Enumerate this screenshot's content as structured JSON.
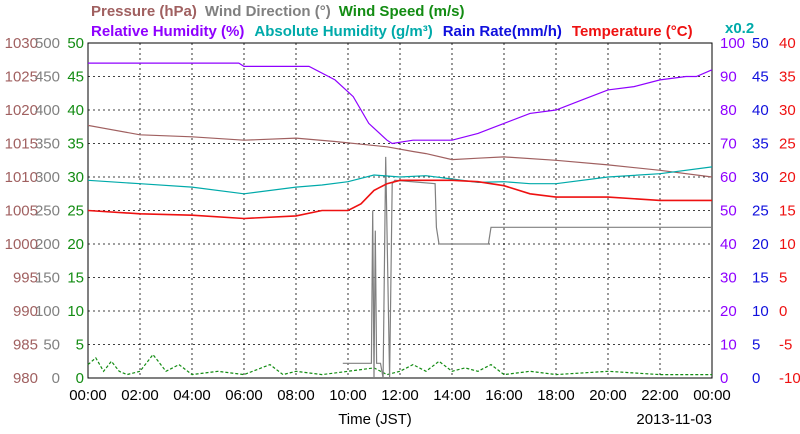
{
  "chart_data": {
    "type": "line",
    "date_label": "2013-11-03",
    "xlabel": "Time (JST)",
    "x_ticks": [
      "00:00",
      "02:00",
      "04:00",
      "06:00",
      "08:00",
      "10:00",
      "12:00",
      "14:00",
      "16:00",
      "18:00",
      "20:00",
      "22:00",
      "00:00"
    ],
    "legend": {
      "row1": [
        {
          "key": "pressure",
          "text": "Pressure (hPa)",
          "color": "#a06060"
        },
        {
          "key": "wind_direction",
          "text": "Wind Direction (°)",
          "color": "#808080"
        },
        {
          "key": "wind_speed",
          "text": "Wind Speed (m/s)",
          "color": "#138c13"
        }
      ],
      "row2": [
        {
          "key": "humidity",
          "text": "Relative Humidity (%)",
          "color": "#8f00ff"
        },
        {
          "key": "abs_humidity",
          "text": "Absolute Humidity (g/m³)",
          "color": "#00aaaa"
        },
        {
          "key": "rain_rate",
          "text": "Rain Rate(mm/h)",
          "color": "#1010dd"
        },
        {
          "key": "temperature",
          "text": "Temperature (°C)",
          "color": "#ee1111"
        }
      ],
      "abs_scale_note": "x0.2"
    },
    "axes": {
      "pressure": {
        "color": "#a06060",
        "ticks": [
          "1030",
          "1025",
          "1020",
          "1015",
          "1010",
          "1005",
          "1000",
          "995",
          "990",
          "985",
          "980"
        ]
      },
      "wind_direction": {
        "color": "#808080",
        "ticks": [
          "500",
          "450",
          "400",
          "350",
          "300",
          "250",
          "200",
          "150",
          "100",
          "50",
          "0"
        ]
      },
      "wind_speed": {
        "color": "#138c13",
        "ticks": [
          "50",
          "45",
          "40",
          "35",
          "30",
          "25",
          "20",
          "15",
          "10",
          "5",
          "0"
        ]
      },
      "humidity": {
        "color": "#8f00ff",
        "ticks": [
          "100",
          "90",
          "80",
          "70",
          "60",
          "50",
          "40",
          "30",
          "20",
          "10",
          "0"
        ]
      },
      "rain_rate": {
        "color": "#1010dd",
        "ticks": [
          "50",
          "45",
          "40",
          "35",
          "30",
          "25",
          "20",
          "15",
          "10",
          "5",
          "0"
        ]
      },
      "temperature": {
        "color": "#ee1111",
        "ticks": [
          "40",
          "35",
          "30",
          "25",
          "20",
          "15",
          "10",
          "5",
          "0",
          "-5",
          "-10"
        ]
      }
    },
    "series": [
      {
        "key": "humidity",
        "name": "Relative Humidity (%)",
        "color": "#8f00ff",
        "axis_range": [
          0,
          100
        ],
        "x": [
          0,
          5.8,
          6,
          8.5,
          9.5,
          10.2,
          10.8,
          11.5,
          11.7,
          12.5,
          13.5,
          14,
          15,
          16,
          17,
          18,
          19,
          20,
          21,
          22,
          23,
          23.4,
          24
        ],
        "y": [
          94,
          94,
          93,
          93,
          89,
          84,
          76,
          71,
          70,
          71,
          71,
          71,
          73,
          76,
          79,
          80,
          83,
          86,
          87,
          89,
          90,
          90,
          92
        ]
      },
      {
        "key": "pressure",
        "name": "Pressure (hPa)",
        "color": "#a06060",
        "axis_range": [
          980,
          1030
        ],
        "x": [
          0,
          2,
          4,
          6,
          8,
          9.5,
          10.5,
          11.5,
          12.5,
          13,
          14,
          15,
          16,
          18,
          20,
          22,
          24
        ],
        "y": [
          1017.7,
          1016.3,
          1016,
          1015.5,
          1015.8,
          1015.3,
          1014.9,
          1014.5,
          1013.8,
          1013.5,
          1012.6,
          1012.8,
          1013,
          1012.5,
          1011.8,
          1011,
          1010
        ]
      },
      {
        "key": "abs_humidity",
        "name": "Absolute Humidity (g/m³)",
        "color": "#00aaaa",
        "axis_range": [
          0,
          50
        ],
        "x": [
          0,
          2,
          4,
          6,
          8,
          9,
          10,
          11,
          12,
          13,
          14,
          15,
          16,
          17,
          18,
          20,
          22,
          24
        ],
        "y": [
          29.5,
          29,
          28.5,
          27.5,
          28.5,
          28.8,
          29.3,
          30.3,
          30,
          30.2,
          29.7,
          29.2,
          29.3,
          29,
          29,
          30,
          30.5,
          31.5
        ]
      },
      {
        "key": "temperature",
        "name": "Temperature (°C)",
        "color": "#ee1111",
        "axis_range": [
          -10,
          40
        ],
        "x": [
          0,
          2,
          4,
          6,
          8,
          9,
          10,
          10.5,
          11,
          11.5,
          12,
          13,
          14,
          15,
          16,
          17,
          18,
          20,
          22,
          24
        ],
        "y": [
          15,
          14.5,
          14.3,
          13.8,
          14.2,
          15,
          15,
          16,
          18,
          19,
          19.5,
          19.5,
          19.5,
          19.3,
          18.7,
          17.5,
          17,
          17,
          16.5,
          16.5
        ]
      },
      {
        "key": "wind_direction",
        "name": "Wind Direction (°)",
        "color": "#808080",
        "axis_range": [
          0,
          500
        ],
        "x": [
          9.8,
          10.9,
          10.95,
          11.0,
          11.05,
          11.1,
          11.25,
          11.35,
          11.45,
          11.6,
          11.7,
          11.8,
          13.35,
          13.4,
          13.5,
          15.4,
          15.5,
          24
        ],
        "y": [
          22,
          22,
          250,
          0,
          220,
          22,
          22,
          0,
          330,
          0,
          290,
          295,
          290,
          225,
          200,
          200,
          225,
          225
        ]
      },
      {
        "key": "wind_speed",
        "name": "Wind Speed (m/s)",
        "color": "#138c13",
        "axis_range": [
          0,
          50
        ],
        "x": [
          0,
          0.3,
          0.6,
          0.9,
          1.2,
          1.5,
          2.0,
          2.5,
          3.0,
          3.5,
          4.0,
          5.0,
          6.0,
          7.0,
          7.5,
          8.0,
          9.0,
          10.0,
          11.0,
          11.5,
          12.0,
          12.5,
          13.0,
          13.5,
          14.0,
          14.5,
          15.0,
          15.5,
          16.0,
          17.0,
          18.0,
          20.0,
          22.0,
          24.0
        ],
        "y": [
          2,
          3,
          1,
          2.5,
          1,
          0.5,
          1,
          3.5,
          1,
          2,
          0.5,
          1,
          0.5,
          2,
          0.5,
          1,
          0.5,
          1,
          1.5,
          0.5,
          1,
          2,
          1,
          2.5,
          1,
          1.5,
          1,
          2,
          0.5,
          1,
          0.5,
          1,
          0.5,
          0.5
        ]
      }
    ]
  }
}
